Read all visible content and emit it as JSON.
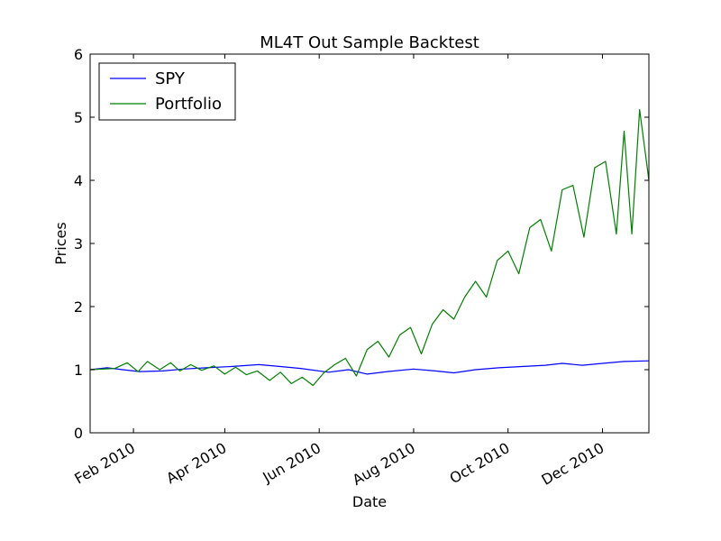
{
  "chart_data": {
    "type": "line",
    "title": "ML4T Out Sample Backtest",
    "xlabel": "Date",
    "ylabel": "Prices",
    "xlim": [
      "2010-01-04",
      "2010-12-31"
    ],
    "ylim": [
      0,
      6
    ],
    "grid": false,
    "legend_position": "top-left",
    "x_ticks": [
      {
        "date": "2010-02-01",
        "label": "Feb 2010"
      },
      {
        "date": "2010-04-01",
        "label": "Apr 2010"
      },
      {
        "date": "2010-06-01",
        "label": "Jun 2010"
      },
      {
        "date": "2010-08-01",
        "label": "Aug 2010"
      },
      {
        "date": "2010-10-01",
        "label": "Oct 2010"
      },
      {
        "date": "2010-12-01",
        "label": "Dec 2010"
      }
    ],
    "y_ticks": [
      0,
      1,
      2,
      3,
      4,
      5,
      6
    ],
    "series": [
      {
        "name": "SPY",
        "color": "#0000ff",
        "points": [
          [
            "2010-01-04",
            1.0
          ],
          [
            "2010-01-15",
            1.03
          ],
          [
            "2010-01-25",
            1.0
          ],
          [
            "2010-02-05",
            0.97
          ],
          [
            "2010-02-20",
            0.98
          ],
          [
            "2010-03-05",
            1.01
          ],
          [
            "2010-03-20",
            1.03
          ],
          [
            "2010-04-05",
            1.05
          ],
          [
            "2010-04-23",
            1.08
          ],
          [
            "2010-05-07",
            1.05
          ],
          [
            "2010-05-20",
            1.02
          ],
          [
            "2010-06-07",
            0.96
          ],
          [
            "2010-06-20",
            1.0
          ],
          [
            "2010-07-02",
            0.93
          ],
          [
            "2010-07-15",
            0.97
          ],
          [
            "2010-08-01",
            1.01
          ],
          [
            "2010-08-15",
            0.98
          ],
          [
            "2010-08-27",
            0.95
          ],
          [
            "2010-09-10",
            1.0
          ],
          [
            "2010-09-25",
            1.03
          ],
          [
            "2010-10-10",
            1.05
          ],
          [
            "2010-10-25",
            1.07
          ],
          [
            "2010-11-05",
            1.1
          ],
          [
            "2010-11-18",
            1.07
          ],
          [
            "2010-12-01",
            1.1
          ],
          [
            "2010-12-15",
            1.13
          ],
          [
            "2010-12-31",
            1.14
          ]
        ]
      },
      {
        "name": "Portfolio",
        "color": "#008000",
        "points": [
          [
            "2010-01-04",
            1.0
          ],
          [
            "2010-01-20",
            1.02
          ],
          [
            "2010-01-28",
            1.11
          ],
          [
            "2010-02-04",
            0.97
          ],
          [
            "2010-02-10",
            1.13
          ],
          [
            "2010-02-18",
            1.0
          ],
          [
            "2010-02-25",
            1.11
          ],
          [
            "2010-03-03",
            0.98
          ],
          [
            "2010-03-10",
            1.08
          ],
          [
            "2010-03-17",
            0.99
          ],
          [
            "2010-03-25",
            1.06
          ],
          [
            "2010-04-01",
            0.93
          ],
          [
            "2010-04-08",
            1.04
          ],
          [
            "2010-04-15",
            0.92
          ],
          [
            "2010-04-22",
            0.98
          ],
          [
            "2010-04-30",
            0.83
          ],
          [
            "2010-05-07",
            0.96
          ],
          [
            "2010-05-14",
            0.78
          ],
          [
            "2010-05-21",
            0.88
          ],
          [
            "2010-05-28",
            0.75
          ],
          [
            "2010-06-04",
            0.95
          ],
          [
            "2010-06-11",
            1.08
          ],
          [
            "2010-06-18",
            1.18
          ],
          [
            "2010-06-25",
            0.9
          ],
          [
            "2010-07-02",
            1.32
          ],
          [
            "2010-07-09",
            1.45
          ],
          [
            "2010-07-16",
            1.2
          ],
          [
            "2010-07-23",
            1.55
          ],
          [
            "2010-07-30",
            1.67
          ],
          [
            "2010-08-06",
            1.25
          ],
          [
            "2010-08-13",
            1.72
          ],
          [
            "2010-08-20",
            1.95
          ],
          [
            "2010-08-27",
            1.8
          ],
          [
            "2010-09-03",
            2.15
          ],
          [
            "2010-09-10",
            2.4
          ],
          [
            "2010-09-17",
            2.15
          ],
          [
            "2010-09-24",
            2.73
          ],
          [
            "2010-10-01",
            2.88
          ],
          [
            "2010-10-08",
            2.52
          ],
          [
            "2010-10-15",
            3.25
          ],
          [
            "2010-10-22",
            3.38
          ],
          [
            "2010-10-29",
            2.88
          ],
          [
            "2010-11-05",
            3.85
          ],
          [
            "2010-11-12",
            3.92
          ],
          [
            "2010-11-19",
            3.1
          ],
          [
            "2010-11-26",
            4.2
          ],
          [
            "2010-12-03",
            4.3
          ],
          [
            "2010-12-10",
            3.15
          ],
          [
            "2010-12-15",
            4.78
          ],
          [
            "2010-12-20",
            3.15
          ],
          [
            "2010-12-25",
            5.12
          ],
          [
            "2010-12-31",
            4.0
          ]
        ]
      }
    ]
  }
}
